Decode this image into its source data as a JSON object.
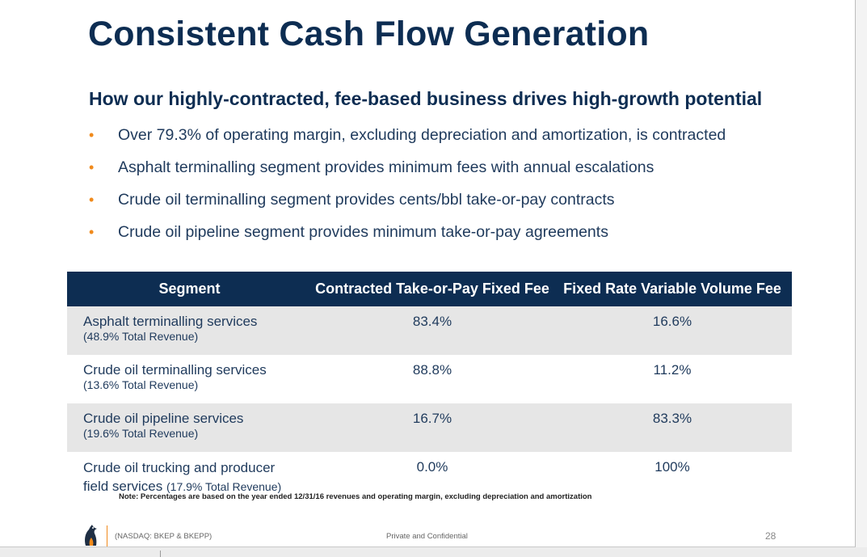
{
  "slide": {
    "title": "Consistent Cash Flow Generation",
    "subtitle": "How our highly-contracted, fee-based business drives high-growth potential",
    "bullet_symbol": "•",
    "bullets": [
      "Over 79.3% of operating margin, excluding depreciation and amortization, is contracted",
      "Asphalt terminalling segment provides minimum fees with annual escalations",
      "Crude oil terminalling segment provides cents/bbl take-or-pay contracts",
      "Crude oil pipeline segment provides minimum take-or-pay agreements"
    ]
  },
  "table": {
    "headers": [
      "Segment",
      "Contracted Take-or-Pay Fixed Fee",
      "Fixed Rate Variable Volume Fee"
    ],
    "rows": [
      {
        "segment": "Asphalt terminalling services",
        "sub": "(48.9% Total Revenue)",
        "fixed": "83.4%",
        "variable": "16.6%"
      },
      {
        "segment": "Crude oil terminalling services",
        "sub": "(13.6% Total Revenue)",
        "fixed": "88.8%",
        "variable": "11.2%"
      },
      {
        "segment": "Crude oil pipeline services",
        "sub": "(19.6% Total Revenue)",
        "fixed": "16.7%",
        "variable": "83.3%"
      },
      {
        "segment_line1": "Crude oil trucking and producer",
        "segment_line2": "field services",
        "sub": "(17.9% Total Revenue)",
        "fixed": "0.0%",
        "variable": "100%"
      }
    ]
  },
  "note": "Note: Percentages are based on the year ended 12/31/16 revenues and operating margin, excluding depreciation and amortization",
  "footer": {
    "ticker": "(NASDAQ: BKEP & BKEPP)",
    "confidential": "Private and Confidential",
    "page_number": "28"
  },
  "colors": {
    "navy": "#0d2d52",
    "orange_accent": "#f08a1c",
    "row_shade": "#e6e6e6"
  },
  "icons": {
    "logo": "company-logo-icon"
  }
}
